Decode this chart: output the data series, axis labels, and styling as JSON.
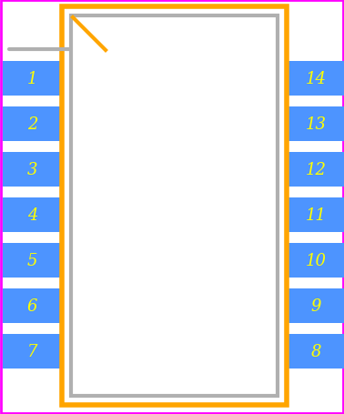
{
  "background_color": "#ffffff",
  "border_color": "#ff00ff",
  "pin_color": "#4d94ff",
  "pin_text_color": "#ffff00",
  "body_outline_color": "#ffa500",
  "body_fill_color": "#ffffff",
  "inner_rect_color": "#b0b0b0",
  "notch_line_color": "#ffa500",
  "pin1_indicator_color": "#b0b0b0",
  "left_pins": [
    1,
    2,
    3,
    4,
    5,
    6,
    7
  ],
  "right_pins": [
    14,
    13,
    12,
    11,
    10,
    9,
    8
  ],
  "fig_width": 3.78,
  "fig_height": 4.56,
  "dpi": 100
}
